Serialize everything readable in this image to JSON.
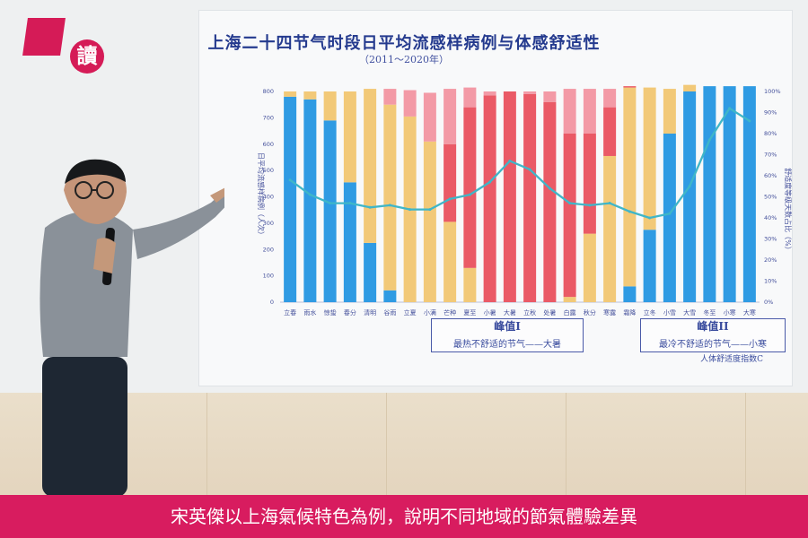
{
  "logo_text": "讀",
  "caption": "宋英傑以上海氣候特色為例，說明不同地域的節氣體驗差異",
  "screen": {
    "title": "上海二十四节气时段日平均流感样病例与体感舒适性",
    "subtitle": "（2011～2020年）",
    "left_axis_label": "日平均流感样病例（人次）",
    "right_axis_label": "舒适度等级天数占比（%）",
    "bottom_right_label": "人体舒适度指数C",
    "peak1_title": "峰值I",
    "peak1_text": "最热不舒适的节气——大暑",
    "peak2_title": "峰值II",
    "peak2_text": "最冷不舒适的节气——小寒"
  },
  "colors": {
    "blue": "#2f9be3",
    "yellow": "#f2c978",
    "red": "#ea5a66",
    "pink": "#f39aa6",
    "line": "#3fb6c8",
    "caption_bg": "#d81c5f"
  },
  "chart_data": {
    "type": "bar",
    "categories": [
      "立春",
      "雨水",
      "惊蛰",
      "春分",
      "清明",
      "谷雨",
      "立夏",
      "小满",
      "芒种",
      "夏至",
      "小暑",
      "大暑",
      "立秋",
      "处暑",
      "白露",
      "秋分",
      "寒露",
      "霜降",
      "立冬",
      "小雪",
      "大雪",
      "冬至",
      "小寒",
      "大寒"
    ],
    "y_left_ticks": [
      0,
      100,
      200,
      300,
      400,
      500,
      600,
      700,
      800
    ],
    "y_right_ticks": [
      "0%",
      "10%",
      "20%",
      "30%",
      "40%",
      "50%",
      "60%",
      "70%",
      "80%",
      "90%",
      "100%"
    ],
    "series": [
      {
        "name": "",
        "color": "blue",
        "values": [
          780,
          770,
          690,
          455,
          225,
          45,
          0,
          0,
          0,
          0,
          0,
          0,
          0,
          0,
          0,
          0,
          0,
          60,
          275,
          640,
          800,
          820,
          820,
          820
        ]
      },
      {
        "name": "",
        "color": "yellow",
        "values": [
          20,
          30,
          110,
          345,
          585,
          705,
          705,
          610,
          305,
          130,
          0,
          0,
          0,
          0,
          20,
          260,
          555,
          755,
          540,
          170,
          25,
          0,
          0,
          0
        ]
      },
      {
        "name": "",
        "color": "red",
        "values": [
          0,
          0,
          0,
          0,
          0,
          0,
          0,
          0,
          295,
          610,
          785,
          800,
          790,
          760,
          620,
          380,
          185,
          5,
          0,
          0,
          0,
          0,
          0,
          0
        ]
      },
      {
        "name": "",
        "color": "pink",
        "values": [
          0,
          0,
          0,
          0,
          0,
          60,
          100,
          185,
          210,
          75,
          15,
          0,
          10,
          40,
          170,
          170,
          70,
          0,
          0,
          0,
          0,
          0,
          0,
          0
        ]
      },
      {
        "name": "",
        "color": "line",
        "values": [
          58,
          51,
          47,
          47,
          45,
          46,
          44,
          44,
          49,
          51,
          57,
          67,
          63,
          54,
          47,
          46,
          47,
          43,
          40,
          42,
          55,
          77,
          92,
          86
        ]
      }
    ],
    "ylim_left": [
      0,
      800
    ],
    "ylim_right": [
      0,
      100
    ]
  }
}
